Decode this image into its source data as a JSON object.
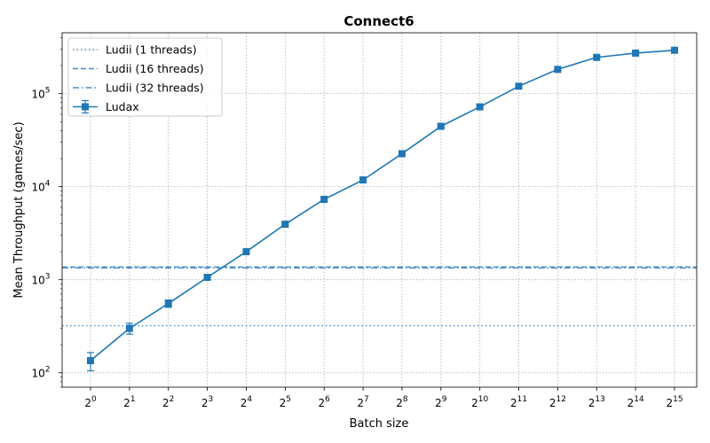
{
  "chart_data": {
    "type": "line",
    "title": "Connect6",
    "xlabel": "Batch size",
    "ylabel": "Mean Throughput (games/sec)",
    "yscale": "log",
    "ylim": [
      70,
      450000
    ],
    "grid": true,
    "legend_position": "top-left",
    "x_ticks": [
      {
        "base": "2",
        "exp": "0"
      },
      {
        "base": "2",
        "exp": "1"
      },
      {
        "base": "2",
        "exp": "2"
      },
      {
        "base": "2",
        "exp": "3"
      },
      {
        "base": "2",
        "exp": "4"
      },
      {
        "base": "2",
        "exp": "5"
      },
      {
        "base": "2",
        "exp": "6"
      },
      {
        "base": "2",
        "exp": "7"
      },
      {
        "base": "2",
        "exp": "8"
      },
      {
        "base": "2",
        "exp": "9"
      },
      {
        "base": "2",
        "exp": "10"
      },
      {
        "base": "2",
        "exp": "11"
      },
      {
        "base": "2",
        "exp": "12"
      },
      {
        "base": "2",
        "exp": "13"
      },
      {
        "base": "2",
        "exp": "14"
      },
      {
        "base": "2",
        "exp": "15"
      }
    ],
    "y_ticks": [
      {
        "value": 100,
        "base": "10",
        "exp": "2"
      },
      {
        "value": 1000,
        "base": "10",
        "exp": "3"
      },
      {
        "value": 10000,
        "base": "10",
        "exp": "4"
      },
      {
        "value": 100000,
        "base": "10",
        "exp": "5"
      }
    ],
    "x": [
      1,
      2,
      4,
      8,
      16,
      32,
      64,
      128,
      256,
      512,
      1024,
      2048,
      4096,
      8192,
      16384,
      32768
    ],
    "series": [
      {
        "name": "Ludax",
        "color": "#1f77b4",
        "values": [
          135,
          300,
          555,
          1060,
          2000,
          3950,
          7300,
          11800,
          22600,
          44500,
          72000,
          120000,
          182000,
          245000,
          272000,
          292000
        ],
        "errors": [
          30,
          40,
          50,
          60,
          90,
          150,
          250,
          400,
          700,
          1500,
          2500,
          3500,
          5000,
          7000,
          8000,
          9000
        ]
      }
    ],
    "reference_lines": [
      {
        "name": "Ludii (1 threads)",
        "value": 320,
        "style": "dotted",
        "color": "#4a8fc9"
      },
      {
        "name": "Ludii (16 threads)",
        "value": 1370,
        "style": "dashed",
        "color": "#4a8fc9"
      },
      {
        "name": "Ludii (32 threads)",
        "value": 1340,
        "style": "dashdot",
        "color": "#4a8fc9"
      }
    ]
  }
}
